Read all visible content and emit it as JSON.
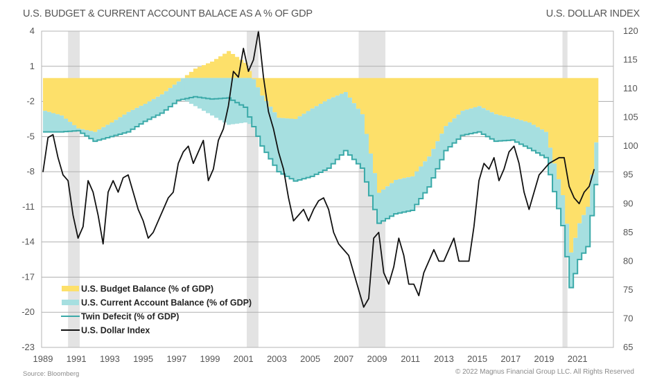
{
  "header": {
    "title_left": "U.S. BUDGET & CURRENT ACCOUNT BALACE AS A % OF GDP",
    "title_right": "U.S. DOLLAR INDEX"
  },
  "footer": {
    "source": "Source: Bloomberg",
    "copyright": "© 2022 Magnus Financial Group LLC. All Rights Reserved"
  },
  "chart_data": {
    "type": "area",
    "title": "U.S. BUDGET & CURRENT ACCOUNT BALACE AS A % OF GDP",
    "title_right": "U.S. DOLLAR INDEX",
    "xlabel": "",
    "ylabel_left": "% of GDP",
    "ylabel_right": "U.S. Dollar Index",
    "xlim": [
      1989,
      2022.5
    ],
    "ylim_left": [
      -23,
      4
    ],
    "ylim_right": [
      65,
      120
    ],
    "x_ticks": [
      "1989",
      "1991",
      "1993",
      "1995",
      "1997",
      "1999",
      "2001",
      "2003",
      "2005",
      "2007",
      "2009",
      "2011",
      "2013",
      "2015",
      "2017",
      "2019",
      "2021"
    ],
    "y_ticks_left": [
      4,
      1,
      -2,
      -5,
      -8,
      -11,
      -14,
      -17,
      -20,
      -23
    ],
    "y_ticks_right": [
      120,
      115,
      110,
      105,
      100,
      95,
      90,
      85,
      80,
      75,
      70,
      65
    ],
    "grid": "horizontal",
    "legend_position": "bottom-left",
    "recessions": [
      [
        1990.5,
        1991.2
      ],
      [
        2001.2,
        2001.9
      ],
      [
        2007.9,
        2009.5
      ],
      [
        2020.1,
        2020.4
      ]
    ],
    "colors": {
      "budget": "#fde06a",
      "current_account": "#a6dfe0",
      "twin_deficit": "#3aa9a8",
      "dollar": "#111111",
      "recession": "#e3e3e3",
      "grid": "#b0b0b0"
    },
    "legend": [
      {
        "key": "budget",
        "label": "U.S. Budget Balance (% of GDP)",
        "kind": "area"
      },
      {
        "key": "current_account",
        "label": "U.S. Current Account Balance (% of GDP)",
        "kind": "area"
      },
      {
        "key": "twin_deficit",
        "label": "Twin Defecit (% of GDP)",
        "kind": "line"
      },
      {
        "key": "dollar",
        "label": "U.S. Dollar Index",
        "kind": "line"
      }
    ],
    "series": [
      {
        "name": "U.S. Budget Balance (% of GDP)",
        "axis": "left",
        "x": [
          1989,
          1990,
          1991,
          1992,
          1993,
          1994,
          1995,
          1996,
          1997,
          1998,
          1999,
          2000,
          2001,
          2002,
          2003,
          2004,
          2005,
          2006,
          2007,
          2008,
          2009,
          2010,
          2011,
          2012,
          2013,
          2014,
          2015,
          2016,
          2017,
          2018,
          2019,
          2020,
          2020.5,
          2021,
          2021.5,
          2022
        ],
        "values": [
          -2.8,
          -3.2,
          -4.3,
          -4.6,
          -3.8,
          -2.9,
          -2.2,
          -1.4,
          -0.3,
          0.8,
          1.4,
          2.3,
          1.3,
          -1.5,
          -3.4,
          -3.5,
          -2.6,
          -1.8,
          -1.2,
          -3.1,
          -9.8,
          -8.7,
          -8.4,
          -6.7,
          -4.1,
          -2.8,
          -2.4,
          -3.1,
          -3.4,
          -3.8,
          -4.6,
          -10.0,
          -14.9,
          -12.4,
          -11.0,
          -5.5
        ]
      },
      {
        "name": "U.S. Current Account Balance (% of GDP)",
        "axis": "left",
        "x": [
          1989,
          1990,
          1991,
          1992,
          1993,
          1994,
          1995,
          1996,
          1997,
          1998,
          1999,
          2000,
          2001,
          2002,
          2003,
          2004,
          2005,
          2006,
          2007,
          2008,
          2009,
          2010,
          2011,
          2012,
          2013,
          2014,
          2015,
          2016,
          2017,
          2018,
          2019,
          2020,
          2020.5,
          2021,
          2021.5,
          2022
        ],
        "values": [
          -1.8,
          -1.4,
          -0.2,
          -0.8,
          -1.2,
          -1.7,
          -1.5,
          -1.6,
          -1.6,
          -2.4,
          -3.2,
          -4.0,
          -3.8,
          -4.3,
          -4.6,
          -5.3,
          -5.8,
          -5.9,
          -5.0,
          -4.6,
          -2.6,
          -2.9,
          -2.9,
          -2.6,
          -2.1,
          -2.1,
          -2.2,
          -2.3,
          -1.9,
          -2.2,
          -2.2,
          -2.6,
          -3.0,
          -3.1,
          -3.4,
          -3.6
        ]
      },
      {
        "name": "Twin Defecit (% of GDP)",
        "axis": "left",
        "x": [
          1989,
          1990,
          1991,
          1992,
          1993,
          1994,
          1995,
          1996,
          1997,
          1998,
          1999,
          2000,
          2001,
          2002,
          2003,
          2004,
          2005,
          2006,
          2007,
          2008,
          2009,
          2010,
          2011,
          2012,
          2013,
          2014,
          2015,
          2016,
          2017,
          2018,
          2019,
          2020,
          2020.5,
          2021,
          2021.5,
          2022
        ],
        "values": [
          -4.6,
          -4.6,
          -4.5,
          -5.4,
          -5.0,
          -4.6,
          -3.7,
          -3.0,
          -1.9,
          -1.6,
          -1.8,
          -1.7,
          -2.5,
          -5.8,
          -8.0,
          -8.8,
          -8.4,
          -7.7,
          -6.2,
          -7.7,
          -12.4,
          -11.6,
          -11.3,
          -9.3,
          -6.2,
          -4.9,
          -4.6,
          -5.4,
          -5.3,
          -6.0,
          -6.8,
          -12.6,
          -17.9,
          -15.5,
          -14.4,
          -9.1
        ]
      },
      {
        "name": "U.S. Dollar Index",
        "axis": "right",
        "x": [
          1989,
          1989.3,
          1989.6,
          1989.9,
          1990.2,
          1990.5,
          1990.8,
          1991.1,
          1991.4,
          1991.7,
          1992.0,
          1992.3,
          1992.6,
          1992.9,
          1993.2,
          1993.5,
          1993.8,
          1994.1,
          1994.4,
          1994.7,
          1995.0,
          1995.3,
          1995.6,
          1995.9,
          1996.2,
          1996.5,
          1996.8,
          1997.1,
          1997.4,
          1997.7,
          1998.0,
          1998.3,
          1998.6,
          1998.9,
          1999.2,
          1999.5,
          1999.8,
          2000.1,
          2000.4,
          2000.7,
          2001.0,
          2001.3,
          2001.6,
          2001.9,
          2002.2,
          2002.5,
          2002.8,
          2003.1,
          2003.4,
          2003.7,
          2004.0,
          2004.3,
          2004.6,
          2004.9,
          2005.2,
          2005.5,
          2005.8,
          2006.1,
          2006.4,
          2006.7,
          2007.0,
          2007.3,
          2007.6,
          2007.9,
          2008.2,
          2008.5,
          2008.8,
          2009.1,
          2009.4,
          2009.7,
          2010.0,
          2010.3,
          2010.6,
          2010.9,
          2011.2,
          2011.5,
          2011.8,
          2012.1,
          2012.4,
          2012.7,
          2013.0,
          2013.3,
          2013.6,
          2013.9,
          2014.2,
          2014.5,
          2014.8,
          2015.1,
          2015.4,
          2015.7,
          2016.0,
          2016.3,
          2016.6,
          2016.9,
          2017.2,
          2017.5,
          2017.8,
          2018.1,
          2018.4,
          2018.7,
          2019.0,
          2019.3,
          2019.6,
          2019.9,
          2020.2,
          2020.5,
          2020.8,
          2021.1,
          2021.4,
          2021.7,
          2022.0
        ],
        "values": [
          95.5,
          101.5,
          102,
          98,
          95,
          94,
          88,
          84,
          86,
          94,
          92,
          88,
          83,
          92,
          94,
          92,
          94.5,
          95,
          92,
          89,
          87,
          84,
          85,
          87,
          89,
          91,
          92,
          97,
          99,
          100,
          97,
          99,
          101,
          94,
          96,
          101,
          103,
          107,
          113,
          112,
          117,
          113,
          115,
          120,
          112,
          106,
          103,
          99,
          96,
          91,
          87,
          88,
          89,
          87,
          89,
          90.5,
          91,
          89,
          85,
          83,
          82,
          81,
          78,
          75,
          72,
          73.5,
          84,
          85,
          78,
          76,
          79,
          84,
          81,
          76,
          76,
          74,
          78,
          80,
          82,
          80,
          80,
          82,
          84,
          80,
          80,
          80,
          86,
          94,
          97,
          96,
          98,
          94,
          96,
          99,
          100,
          97,
          92,
          89,
          92,
          95,
          96,
          97,
          97.5,
          98,
          98,
          93,
          91,
          90,
          92,
          93,
          96
        ]
      }
    ]
  }
}
